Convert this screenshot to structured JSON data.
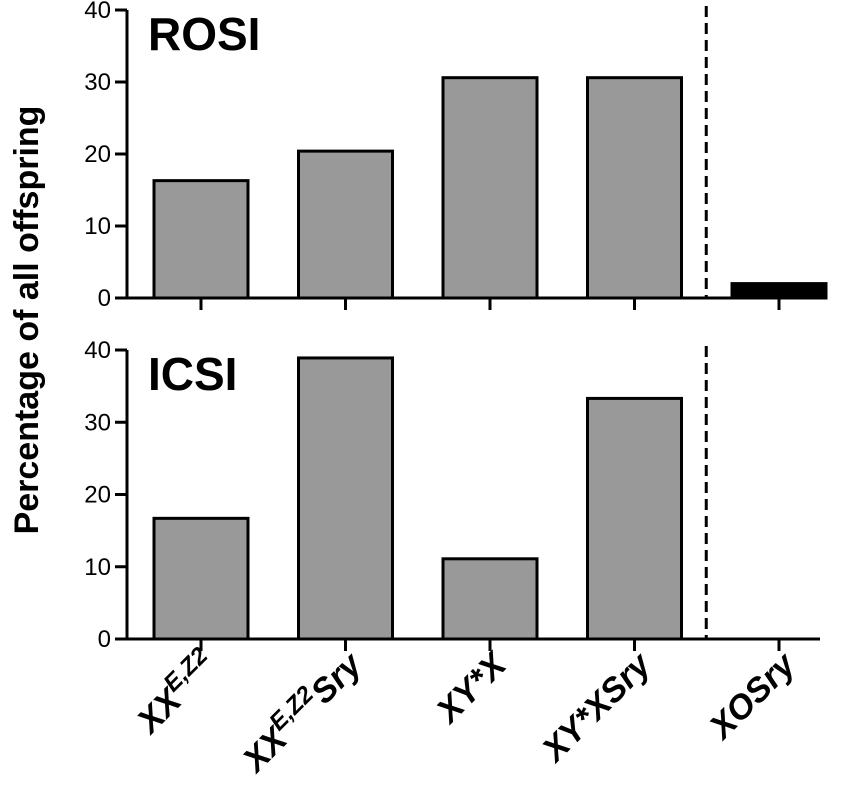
{
  "chart_data": {
    "type": "bar",
    "ylabel": "Percentage of all offspring",
    "categories": [
      {
        "parts": [
          {
            "t": "XX"
          },
          {
            "t": "E,Z2",
            "sup": true
          }
        ]
      },
      {
        "parts": [
          {
            "t": "XX"
          },
          {
            "t": "E,Z2",
            "sup": true
          },
          {
            "t": "Sry"
          }
        ]
      },
      {
        "parts": [
          {
            "t": "XY*X"
          }
        ]
      },
      {
        "parts": [
          {
            "t": "XY*X"
          },
          {
            "t": "Sry"
          }
        ]
      },
      {
        "parts": [
          {
            "t": "XOSry"
          }
        ]
      }
    ],
    "divider_after_category_index": 3,
    "panels": [
      {
        "title": "ROSI",
        "ylim": [
          0,
          40
        ],
        "yticks": [
          "0",
          "10",
          "20",
          "30",
          "40"
        ],
        "values": [
          16.3,
          20.4,
          30.6,
          30.6,
          2.0
        ],
        "bar_colors": [
          "#999999",
          "#999999",
          "#999999",
          "#999999",
          "#000000"
        ]
      },
      {
        "title": "ICSI",
        "ylim": [
          0,
          40
        ],
        "yticks": [
          "0",
          "10",
          "20",
          "30",
          "40"
        ],
        "values": [
          16.7,
          38.9,
          11.1,
          33.3,
          0
        ],
        "bar_colors": [
          "#999999",
          "#999999",
          "#999999",
          "#999999",
          "#000000"
        ]
      }
    ]
  }
}
